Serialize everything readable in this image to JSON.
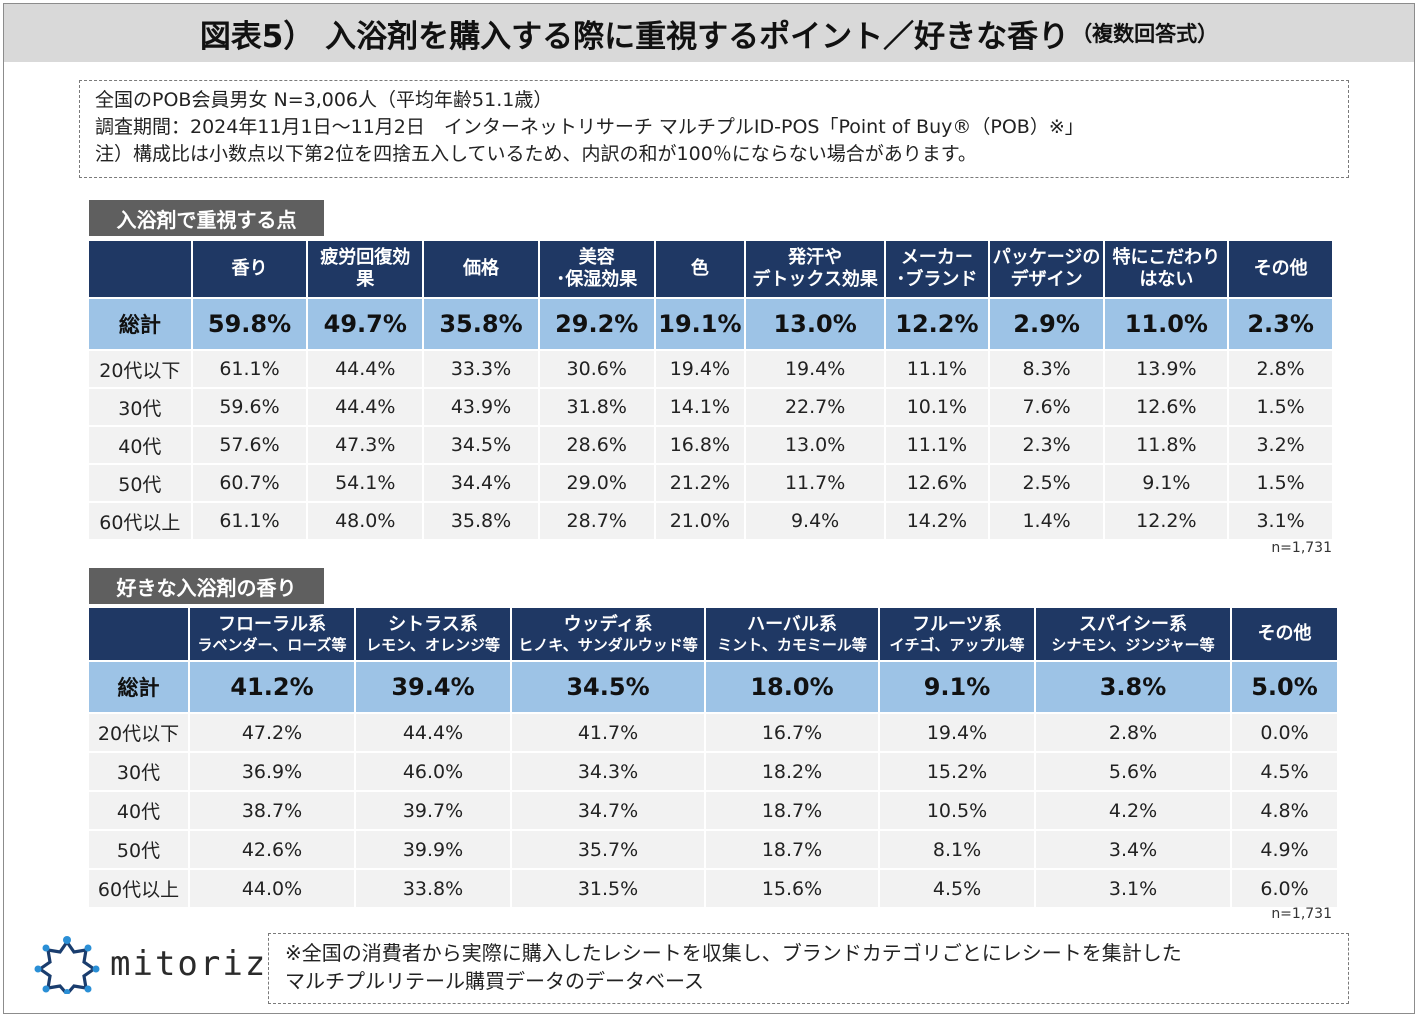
{
  "title": {
    "main": "図表5） 入浴剤を購入する際に重視するポイント／好きな香り",
    "sub": "（複数回答式）"
  },
  "info": [
    "全国のPOB会員男女 N=3,006人（平均年齢51.1歳）",
    "調査期間：2024年11月1日〜11月2日　インターネットリサーチ マルチプルID-POS「Point of Buy®（POB）※」",
    "注）構成比は小数点以下第2位を四捨五入しているため、内訳の和が100％にならない場合があります。"
  ],
  "chart_data": [
    {
      "type": "table",
      "title": "入浴剤で重視する点",
      "columns": [
        [
          "香り"
        ],
        [
          "疲労回復効",
          "果"
        ],
        [
          "価格"
        ],
        [
          "美容",
          "･保湿効果"
        ],
        [
          "色"
        ],
        [
          "発汗や",
          "デトックス効果"
        ],
        [
          "メーカー",
          "･ブランド"
        ],
        [
          "パッケージの",
          "デザイン"
        ],
        [
          "特にこだわり",
          "はない"
        ],
        [
          "その他"
        ]
      ],
      "rows": [
        {
          "label": "総計",
          "total": true,
          "values": [
            "59.8%",
            "49.7%",
            "35.8%",
            "29.2%",
            "19.1%",
            "13.0%",
            "12.2%",
            "2.9%",
            "11.0%",
            "2.3%"
          ]
        },
        {
          "label": "20代以下",
          "values": [
            "61.1%",
            "44.4%",
            "33.3%",
            "30.6%",
            "19.4%",
            "19.4%",
            "11.1%",
            "8.3%",
            "13.9%",
            "2.8%"
          ]
        },
        {
          "label": "30代",
          "values": [
            "59.6%",
            "44.4%",
            "43.9%",
            "31.8%",
            "14.1%",
            "22.7%",
            "10.1%",
            "7.6%",
            "12.6%",
            "1.5%"
          ]
        },
        {
          "label": "40代",
          "values": [
            "57.6%",
            "47.3%",
            "34.5%",
            "28.6%",
            "16.8%",
            "13.0%",
            "11.1%",
            "2.3%",
            "11.8%",
            "3.2%"
          ]
        },
        {
          "label": "50代",
          "values": [
            "60.7%",
            "54.1%",
            "34.4%",
            "29.0%",
            "21.2%",
            "11.7%",
            "12.6%",
            "2.5%",
            "9.1%",
            "1.5%"
          ]
        },
        {
          "label": "60代以上",
          "values": [
            "61.1%",
            "48.0%",
            "35.8%",
            "28.7%",
            "21.0%",
            "9.4%",
            "14.2%",
            "1.4%",
            "12.2%",
            "3.1%"
          ]
        }
      ],
      "n_note": "n=1,731"
    },
    {
      "type": "table",
      "title": "好きな入浴剤の香り",
      "columns": [
        [
          "フローラル系",
          "ラベンダー、ローズ等"
        ],
        [
          "シトラス系",
          "レモン、オレンジ等"
        ],
        [
          "ウッディ系",
          "ヒノキ、サンダルウッド等"
        ],
        [
          "ハーバル系",
          "ミント、カモミール等"
        ],
        [
          "フルーツ系",
          "イチゴ、アップル等"
        ],
        [
          "スパイシー系",
          "シナモン、ジンジャー等"
        ],
        [
          "その他"
        ]
      ],
      "rows": [
        {
          "label": "総計",
          "total": true,
          "values": [
            "41.2%",
            "39.4%",
            "34.5%",
            "18.0%",
            "9.1%",
            "3.8%",
            "5.0%"
          ]
        },
        {
          "label": "20代以下",
          "values": [
            "47.2%",
            "44.4%",
            "41.7%",
            "16.7%",
            "19.4%",
            "2.8%",
            "0.0%"
          ]
        },
        {
          "label": "30代",
          "values": [
            "36.9%",
            "46.0%",
            "34.3%",
            "18.2%",
            "15.2%",
            "5.6%",
            "4.5%"
          ]
        },
        {
          "label": "40代",
          "values": [
            "38.7%",
            "39.7%",
            "34.7%",
            "18.7%",
            "10.5%",
            "4.2%",
            "4.8%"
          ]
        },
        {
          "label": "50代",
          "values": [
            "42.6%",
            "39.9%",
            "35.7%",
            "18.7%",
            "8.1%",
            "3.4%",
            "4.9%"
          ]
        },
        {
          "label": "60代以上",
          "values": [
            "44.0%",
            "33.8%",
            "31.5%",
            "15.6%",
            "4.5%",
            "3.1%",
            "6.0%"
          ]
        }
      ],
      "n_note": "n=1,731"
    }
  ],
  "logo": {
    "text": "mitoriz",
    "icon": "mitoriz-star-logo-icon"
  },
  "footnote": [
    "※全国の消費者から実際に購入したレシートを収集し、ブランドカテゴリごとにレシートを集計した",
    "マルチプルリテール購買データのデータベース"
  ],
  "colors": {
    "header": "#1f3864",
    "total_row": "#9dc3e6",
    "body_row": "#f2f2f2",
    "label": "#5f5f5f",
    "title_bg": "#d9d9d9",
    "logo_blue": "#2a8fd6",
    "logo_dark": "#1a3d6e"
  }
}
